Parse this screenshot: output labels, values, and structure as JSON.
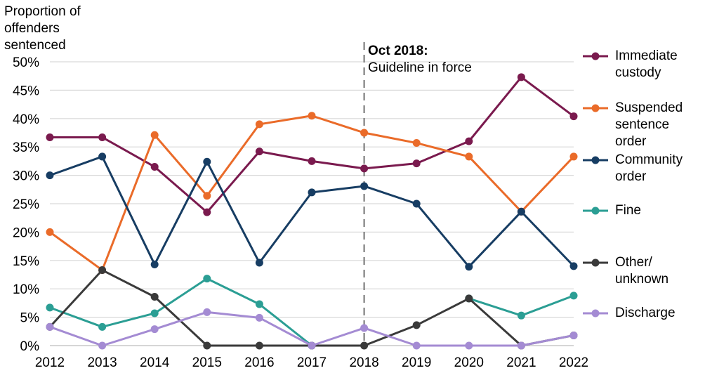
{
  "chart_data": {
    "type": "line",
    "ylabel": [
      "Proportion of",
      "offenders",
      "sentenced"
    ],
    "xlabel": "",
    "x": [
      "2012",
      "2013",
      "2014",
      "2015",
      "2016",
      "2017",
      "2018",
      "2019",
      "2020",
      "2021",
      "2022"
    ],
    "ylim": [
      0,
      50
    ],
    "yticks": [
      "0%",
      "5%",
      "10%",
      "15%",
      "20%",
      "25%",
      "30%",
      "35%",
      "40%",
      "45%",
      "50%"
    ],
    "grid": true,
    "legend_position": "right",
    "annotation": {
      "x": "2018",
      "title": "Oct 2018:",
      "text": "Guideline in force"
    },
    "series": [
      {
        "name": [
          "Immediate",
          "custody"
        ],
        "color": "#7a1a4e",
        "values": [
          36.7,
          36.7,
          31.5,
          23.5,
          34.2,
          32.5,
          31.2,
          32.1,
          36.0,
          47.3,
          40.4
        ]
      },
      {
        "name": [
          "Suspended",
          "sentence",
          "order"
        ],
        "color": "#ea6b29",
        "values": [
          20.0,
          13.3,
          37.1,
          26.4,
          39.0,
          40.5,
          37.5,
          35.7,
          33.3,
          23.6,
          33.3
        ]
      },
      {
        "name": [
          "Community",
          "order"
        ],
        "color": "#173d63",
        "values": [
          30.0,
          33.3,
          14.3,
          32.4,
          14.6,
          27.0,
          28.1,
          25.0,
          13.9,
          23.6,
          14.0
        ]
      },
      {
        "name": [
          "Fine"
        ],
        "color": "#2b9e94",
        "values": [
          6.7,
          3.3,
          5.7,
          11.8,
          7.3,
          0.0,
          null,
          null,
          8.3,
          5.3,
          8.8
        ]
      },
      {
        "name": [
          "Other/",
          "unknown"
        ],
        "color": "#3a3a3a",
        "values": [
          3.3,
          13.3,
          8.6,
          0.0,
          0.0,
          0.0,
          0.0,
          3.6,
          8.3,
          0.0,
          1.8
        ]
      },
      {
        "name": [
          "Discharge"
        ],
        "color": "#a48bd3",
        "values": [
          3.3,
          0.0,
          2.9,
          5.9,
          4.9,
          0.0,
          3.1,
          0.0,
          0.0,
          0.0,
          1.8
        ]
      }
    ]
  }
}
